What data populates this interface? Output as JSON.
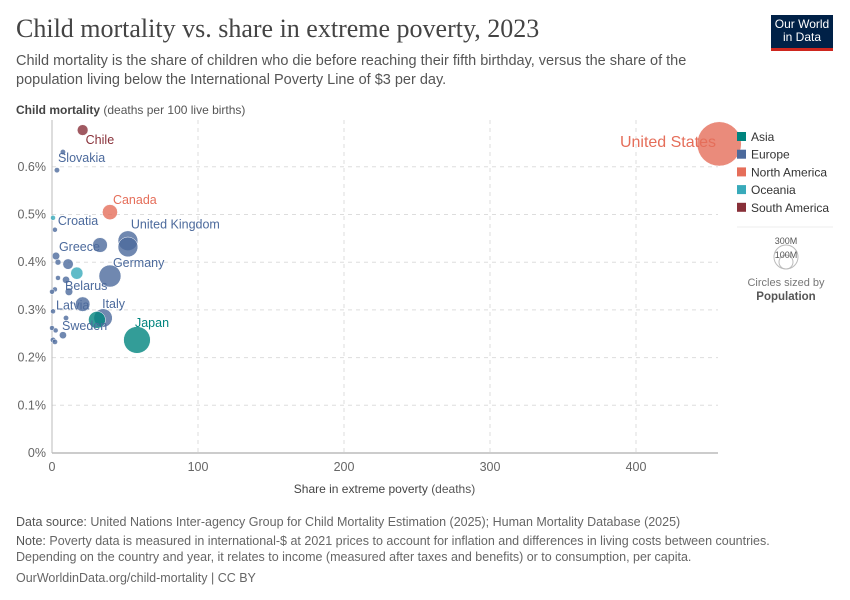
{
  "header": {
    "title": "Child mortality vs. share in extreme poverty, 2023",
    "subtitle": "Child mortality is the share of children who die before reaching their fifth birthday, versus the share of the population living below the International Poverty Line of $3 per day.",
    "logo": "Our World in Data"
  },
  "chart_data": {
    "type": "scatter",
    "ylabel_bold": "Child mortality",
    "ylabel_rest": "(deaths per 100 live births)",
    "xlabel_bold": "Share in extreme poverty",
    "xlabel_rest": "(deaths)",
    "xlim": [
      0,
      455
    ],
    "ylim": [
      0,
      0.68
    ],
    "xticks": [
      {
        "v": 0,
        "l": "0"
      },
      {
        "v": 100,
        "l": "100"
      },
      {
        "v": 200,
        "l": "200"
      },
      {
        "v": 300,
        "l": "300"
      },
      {
        "v": 400,
        "l": "400"
      }
    ],
    "yticks": [
      {
        "v": 0,
        "l": "0%"
      },
      {
        "v": 0.1,
        "l": "0.1%"
      },
      {
        "v": 0.2,
        "l": "0.2%"
      },
      {
        "v": 0.3,
        "l": "0.3%"
      },
      {
        "v": 0.4,
        "l": "0.4%"
      },
      {
        "v": 0.5,
        "l": "0.5%"
      },
      {
        "v": 0.6,
        "l": "0.6%"
      }
    ],
    "grid": true,
    "colors": {
      "Asia": "#00847e",
      "Europe": "#4c6a9c",
      "North America": "#e56e5a",
      "Oceania": "#38aaba",
      "South America": "#883039"
    },
    "legend": [
      "Asia",
      "Europe",
      "North America",
      "Oceania",
      "South America"
    ],
    "size_legend": {
      "title": "Circles sized by",
      "variable": "Population",
      "large": "300M",
      "small": "100M"
    },
    "points": [
      {
        "name": "United States",
        "x": 457,
        "y": 0.648,
        "region": "North America",
        "pop": 340,
        "label": true
      },
      {
        "name": "Chile",
        "x": 21,
        "y": 0.677,
        "region": "South America",
        "pop": 20,
        "label": true
      },
      {
        "name": "Slovakia",
        "x": 7.5,
        "y": 0.631,
        "region": "Europe",
        "pop": 5,
        "label": false
      },
      {
        "name": "Slovakia",
        "x": 3.4,
        "y": 0.593,
        "region": "Europe",
        "pop": 5,
        "label": true
      },
      {
        "name": "Canada",
        "x": 39.7,
        "y": 0.505,
        "region": "North America",
        "pop": 40,
        "label": true
      },
      {
        "name": "",
        "x": 0.7,
        "y": 0.493,
        "region": "Oceania",
        "pop": 1,
        "label": false
      },
      {
        "name": "Croatia",
        "x": 2,
        "y": 0.468,
        "region": "Europe",
        "pop": 4,
        "label": true
      },
      {
        "name": "United Kingdom",
        "x": 52,
        "y": 0.445,
        "region": "Europe",
        "pop": 68,
        "label": true
      },
      {
        "name": "",
        "x": 52,
        "y": 0.432,
        "region": "Europe",
        "pop": 68,
        "label": false
      },
      {
        "name": "",
        "x": 32.9,
        "y": 0.436,
        "region": "Europe",
        "pop": 38,
        "label": false
      },
      {
        "name": "Greece",
        "x": 2.7,
        "y": 0.413,
        "region": "Europe",
        "pop": 10,
        "label": true
      },
      {
        "name": "",
        "x": 4.1,
        "y": 0.4,
        "region": "Europe",
        "pop": 6,
        "label": false
      },
      {
        "name": "",
        "x": 11,
        "y": 0.396,
        "region": "Europe",
        "pop": 19,
        "label": false
      },
      {
        "name": "Germany",
        "x": 39.7,
        "y": 0.371,
        "region": "Europe",
        "pop": 84,
        "label": true
      },
      {
        "name": "",
        "x": 17,
        "y": 0.377,
        "region": "Oceania",
        "pop": 26,
        "label": false
      },
      {
        "name": "",
        "x": 4.1,
        "y": 0.367,
        "region": "Europe",
        "pop": 3,
        "label": false
      },
      {
        "name": "Belarus",
        "x": 9.6,
        "y": 0.363,
        "region": "Europe",
        "pop": 9,
        "label": true
      },
      {
        "name": "",
        "x": 2,
        "y": 0.343,
        "region": "Europe",
        "pop": 3,
        "label": false
      },
      {
        "name": "",
        "x": 0,
        "y": 0.338,
        "region": "Europe",
        "pop": 2,
        "label": false
      },
      {
        "name": "",
        "x": 11.6,
        "y": 0.338,
        "region": "Europe",
        "pop": 10,
        "label": false
      },
      {
        "name": "",
        "x": 21,
        "y": 0.312,
        "region": "Europe",
        "pop": 37,
        "label": false
      },
      {
        "name": "Latvia",
        "x": 0.7,
        "y": 0.297,
        "region": "Europe",
        "pop": 2,
        "label": true
      },
      {
        "name": "Italy",
        "x": 35,
        "y": 0.283,
        "region": "Europe",
        "pop": 59,
        "label": true
      },
      {
        "name": "",
        "x": 30.8,
        "y": 0.279,
        "region": "Asia",
        "pop": 50,
        "label": false
      },
      {
        "name": "",
        "x": 9.6,
        "y": 0.283,
        "region": "Europe",
        "pop": 5,
        "label": false
      },
      {
        "name": "Sweden",
        "x": 0,
        "y": 0.262,
        "region": "Europe",
        "pop": 3,
        "label": true
      },
      {
        "name": "",
        "x": 2.5,
        "y": 0.257,
        "region": "Europe",
        "pop": 2,
        "label": false
      },
      {
        "name": "",
        "x": 7.5,
        "y": 0.247,
        "region": "Europe",
        "pop": 9,
        "label": false
      },
      {
        "name": "",
        "x": 0.7,
        "y": 0.237,
        "region": "Europe",
        "pop": 5,
        "label": false
      },
      {
        "name": "",
        "x": 2,
        "y": 0.233,
        "region": "Europe",
        "pop": 5,
        "label": false
      },
      {
        "name": "Japan",
        "x": 58.2,
        "y": 0.237,
        "region": "Asia",
        "pop": 124,
        "label": true
      }
    ]
  },
  "footer": {
    "source_label": "Data source:",
    "source": "United Nations Inter-agency Group for Child Mortality Estimation (2025); Human Mortality Database (2025)",
    "note_label": "Note:",
    "note": "Poverty data is measured in international-$ at 2021 prices to account for inflation and differences in living costs between countries. Depending on the country and year, it relates to income (measured after taxes and benefits) or to consumption, per capita.",
    "url": "OurWorldinData.org/child-mortality | CC BY"
  }
}
